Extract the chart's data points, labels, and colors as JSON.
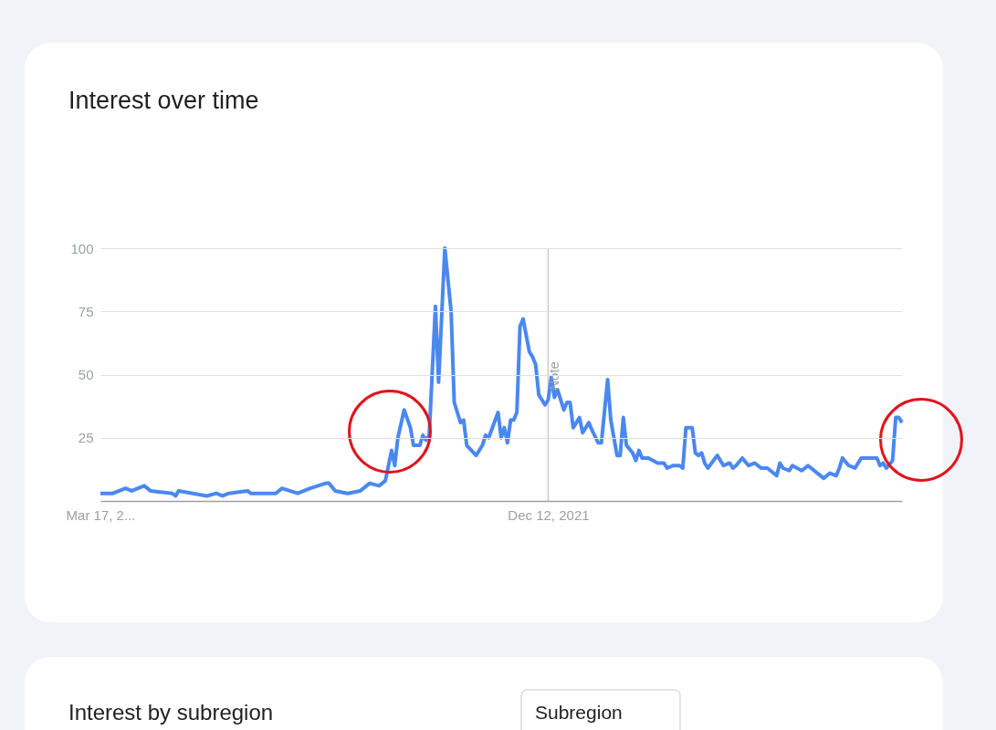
{
  "chart_data": {
    "type": "line",
    "title": "Interest over time",
    "xlim": [
      "2019-03-17",
      "2024-02-11"
    ],
    "xticks": [
      {
        "value": "2019-03-17",
        "label": "Mar 17, 2..."
      },
      {
        "value": "2021-12-12",
        "label": "Dec 12, 2021"
      }
    ],
    "ylim": [
      0,
      100
    ],
    "yticks": [
      25,
      50,
      75,
      100
    ],
    "grid": "y",
    "ref_lines": [
      {
        "axis": "x",
        "value": "2021-12-12",
        "label": "Note",
        "color": "#cccccc"
      }
    ],
    "annotations": [
      "Interest by subregion",
      "Subregion"
    ],
    "series": [
      {
        "color": "#4a88f0",
        "line_style": "solid",
        "x": [
          "2019-03-17",
          "2019-04-14",
          "2019-05-12",
          "2019-05-26",
          "2019-06-23",
          "2019-07-07",
          "2019-08-25",
          "2019-09-01",
          "2019-09-08",
          "2019-11-10",
          "2019-12-01",
          "2019-12-15",
          "2019-12-29",
          "2020-02-09",
          "2020-02-16",
          "2020-04-12",
          "2020-04-26",
          "2020-05-31",
          "2020-06-28",
          "2020-08-02",
          "2020-08-09",
          "2020-08-23",
          "2020-09-20",
          "2020-10-18",
          "2020-11-08",
          "2020-11-29",
          "2020-12-13",
          "2020-12-27",
          "2021-01-03",
          "2021-01-10",
          "2021-01-24",
          "2021-02-07",
          "2021-02-14",
          "2021-02-28",
          "2021-03-07",
          "2021-03-14",
          "2021-03-21",
          "2021-04-04",
          "2021-04-11",
          "2021-04-25",
          "2021-05-09",
          "2021-05-16",
          "2021-05-30",
          "2021-06-06",
          "2021-06-13",
          "2021-07-04",
          "2021-07-18",
          "2021-07-25",
          "2021-08-01",
          "2021-08-22",
          "2021-08-29",
          "2021-09-05",
          "2021-09-12",
          "2021-09-19",
          "2021-09-26",
          "2021-10-03",
          "2021-10-10",
          "2021-10-17",
          "2021-10-31",
          "2021-11-07",
          "2021-11-14",
          "2021-11-21",
          "2021-12-05",
          "2021-12-12",
          "2021-12-19",
          "2021-12-26",
          "2022-01-02",
          "2022-01-09",
          "2022-01-16",
          "2022-01-23",
          "2022-01-30",
          "2022-02-06",
          "2022-02-20",
          "2022-02-27",
          "2022-03-13",
          "2022-03-20",
          "2022-04-03",
          "2022-04-10",
          "2022-04-24",
          "2022-05-01",
          "2022-05-15",
          "2022-05-22",
          "2022-05-29",
          "2022-06-05",
          "2022-06-19",
          "2022-06-26",
          "2022-07-03",
          "2022-07-10",
          "2022-07-24",
          "2022-08-14",
          "2022-08-28",
          "2022-09-04",
          "2022-09-18",
          "2022-10-02",
          "2022-10-09",
          "2022-10-16",
          "2022-10-30",
          "2022-11-06",
          "2022-11-13",
          "2022-11-20",
          "2022-11-27",
          "2022-12-04",
          "2022-12-25",
          "2023-01-08",
          "2023-01-22",
          "2023-01-29",
          "2023-02-05",
          "2023-02-19",
          "2023-03-05",
          "2023-03-19",
          "2023-04-02",
          "2023-04-16",
          "2023-05-07",
          "2023-05-14",
          "2023-05-21",
          "2023-06-04",
          "2023-06-11",
          "2023-07-02",
          "2023-07-16",
          "2023-08-20",
          "2023-09-03",
          "2023-09-17",
          "2023-09-24",
          "2023-10-01",
          "2023-10-15",
          "2023-10-29",
          "2023-11-12",
          "2023-12-17",
          "2023-12-24",
          "2023-12-31",
          "2024-01-07",
          "2024-01-21",
          "2024-01-28",
          "2024-02-04",
          "2024-02-11"
        ],
        "values": [
          3,
          3,
          5,
          4,
          6,
          4,
          3,
          2,
          4,
          2,
          3,
          2,
          3,
          4,
          3,
          3,
          5,
          3,
          5,
          7,
          7,
          4,
          3,
          4,
          7,
          6,
          8,
          20,
          14,
          25,
          36,
          29,
          22,
          22,
          26,
          24,
          26,
          77,
          47,
          100,
          75,
          39,
          31,
          32,
          22,
          18,
          22,
          26,
          25,
          35,
          25,
          29,
          23,
          32,
          32,
          35,
          69,
          72,
          59,
          57,
          54,
          42,
          38,
          40,
          49,
          41,
          44,
          40,
          36,
          39,
          39,
          29,
          33,
          27,
          31,
          28,
          23,
          23,
          48,
          32,
          18,
          18,
          33,
          22,
          19,
          16,
          20,
          17,
          17,
          15,
          15,
          13,
          14,
          14,
          13,
          29,
          29,
          19,
          18,
          19,
          15,
          13,
          18,
          14,
          15,
          13,
          14,
          17,
          14,
          15,
          13,
          13,
          10,
          15,
          13,
          12,
          14,
          12,
          14,
          9,
          11,
          10,
          13,
          17,
          14,
          13,
          17,
          17,
          14,
          15,
          13,
          16,
          33,
          33,
          31
        ]
      }
    ]
  }
}
